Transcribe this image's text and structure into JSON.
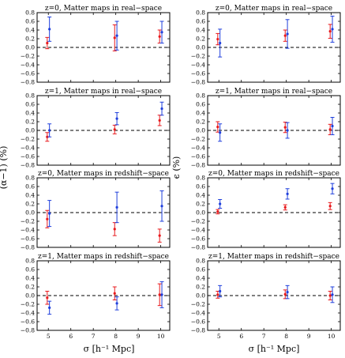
{
  "figure": {
    "xlabel": "σ [h⁻¹ Mpc]",
    "ylabel_left": "(α−1) (%)",
    "ylabel_right": "ϵ (%)"
  },
  "chart_data": [
    {
      "type": "scatter",
      "column": "left",
      "row": 0,
      "title": "z=0, Matter maps in real−space",
      "xlabel": "",
      "ylabel": "(α−1) (%)",
      "xlim": [
        4.5,
        10.4
      ],
      "ylim": [
        -0.8,
        0.8
      ],
      "xticks": [],
      "yticks": [
        -0.8,
        -0.6,
        -0.4,
        -0.2,
        0.0,
        0.2,
        0.4,
        0.6,
        0.8
      ],
      "reference_line": 0,
      "errorbars": true,
      "series": [
        {
          "color": "#e8191c",
          "x": [
            4.95,
            7.95,
            9.95
          ],
          "y": [
            0.1,
            0.22,
            0.25
          ],
          "err": [
            0.13,
            0.3,
            0.15
          ]
        },
        {
          "color": "#1f3fdc",
          "x": [
            5.05,
            8.05,
            10.05
          ],
          "y": [
            0.42,
            0.27,
            0.35
          ],
          "err": [
            0.28,
            0.33,
            0.25
          ]
        }
      ]
    },
    {
      "type": "scatter",
      "column": "right",
      "row": 0,
      "title": "z=0, Matter maps in real−space",
      "xlabel": "",
      "ylabel": "ϵ (%)",
      "xlim": [
        4.5,
        10.4
      ],
      "ylim": [
        -0.8,
        0.8
      ],
      "xticks": [],
      "yticks": [
        -0.8,
        -0.6,
        -0.4,
        -0.2,
        0.0,
        0.2,
        0.4,
        0.6,
        0.8
      ],
      "reference_line": 0,
      "errorbars": true,
      "series": [
        {
          "color": "#e8191c",
          "x": [
            4.95,
            7.95,
            9.95
          ],
          "y": [
            0.19,
            0.27,
            0.37
          ],
          "err": [
            0.13,
            0.13,
            0.16
          ]
        },
        {
          "color": "#1f3fdc",
          "x": [
            5.05,
            8.05,
            10.05
          ],
          "y": [
            0.1,
            0.31,
            0.42
          ],
          "err": [
            0.32,
            0.33,
            0.3
          ]
        }
      ]
    },
    {
      "type": "scatter",
      "column": "left",
      "row": 1,
      "title": "z=1, Matter maps in real−space",
      "xlabel": "",
      "ylabel": "(α−1) (%)",
      "xlim": [
        4.5,
        10.4
      ],
      "ylim": [
        -0.8,
        0.8
      ],
      "xticks": [],
      "yticks": [
        -0.8,
        -0.6,
        -0.4,
        -0.2,
        0.0,
        0.2,
        0.4,
        0.6,
        0.8
      ],
      "reference_line": 0,
      "errorbars": true,
      "series": [
        {
          "color": "#e8191c",
          "x": [
            4.95,
            7.95,
            9.95
          ],
          "y": [
            -0.15,
            0.02,
            0.23
          ],
          "err": [
            0.1,
            0.1,
            0.12
          ]
        },
        {
          "color": "#1f3fdc",
          "x": [
            5.05,
            8.05,
            10.05
          ],
          "y": [
            0.0,
            0.27,
            0.5
          ],
          "err": [
            0.15,
            0.14,
            0.15
          ]
        }
      ]
    },
    {
      "type": "scatter",
      "column": "right",
      "row": 1,
      "title": "z=1, Matter maps in real−space",
      "xlabel": "",
      "ylabel": "ϵ (%)",
      "xlim": [
        4.5,
        10.4
      ],
      "ylim": [
        -0.8,
        0.8
      ],
      "xticks": [],
      "yticks": [
        -0.8,
        -0.6,
        -0.4,
        -0.2,
        0.0,
        0.2,
        0.4,
        0.6,
        0.8
      ],
      "reference_line": 0,
      "errorbars": true,
      "series": [
        {
          "color": "#e8191c",
          "x": [
            4.95,
            7.95,
            9.95
          ],
          "y": [
            0.08,
            0.07,
            0.02
          ],
          "err": [
            0.12,
            0.12,
            0.12
          ]
        },
        {
          "color": "#1f3fdc",
          "x": [
            5.05,
            8.05,
            10.05
          ],
          "y": [
            -0.05,
            0.0,
            0.1
          ],
          "err": [
            0.2,
            0.18,
            0.2
          ]
        }
      ]
    },
    {
      "type": "scatter",
      "column": "left",
      "row": 2,
      "title": "z=0, Matter maps in redshift−space",
      "xlabel": "",
      "ylabel": "(α−1) (%)",
      "xlim": [
        4.5,
        10.4
      ],
      "ylim": [
        -0.8,
        0.8
      ],
      "xticks": [],
      "yticks": [
        -0.8,
        -0.6,
        -0.4,
        -0.2,
        0.0,
        0.2,
        0.4,
        0.6,
        0.8
      ],
      "reference_line": 0,
      "errorbars": true,
      "series": [
        {
          "color": "#e8191c",
          "x": [
            4.95,
            7.95,
            9.95
          ],
          "y": [
            -0.15,
            -0.38,
            -0.53
          ],
          "err": [
            0.2,
            0.15,
            0.15
          ]
        },
        {
          "color": "#1f3fdc",
          "x": [
            5.05,
            8.05,
            10.05
          ],
          "y": [
            -0.02,
            0.12,
            0.15
          ],
          "err": [
            0.3,
            0.35,
            0.35
          ]
        }
      ]
    },
    {
      "type": "scatter",
      "column": "right",
      "row": 2,
      "title": "z=0, Matter maps in redshift−space",
      "xlabel": "",
      "ylabel": "ϵ (%)",
      "xlim": [
        4.5,
        10.4
      ],
      "ylim": [
        -0.8,
        0.8
      ],
      "xticks": [],
      "yticks": [
        -0.8,
        -0.6,
        -0.4,
        -0.2,
        0.0,
        0.2,
        0.4,
        0.6,
        0.8
      ],
      "reference_line": 0,
      "errorbars": true,
      "series": [
        {
          "color": "#e8191c",
          "x": [
            4.95,
            7.95,
            9.95
          ],
          "y": [
            0.02,
            0.12,
            0.15
          ],
          "err": [
            0.05,
            0.06,
            0.08
          ]
        },
        {
          "color": "#1f3fdc",
          "x": [
            5.05,
            8.05,
            10.05
          ],
          "y": [
            0.2,
            0.43,
            0.55
          ],
          "err": [
            0.1,
            0.12,
            0.12
          ]
        }
      ]
    },
    {
      "type": "scatter",
      "column": "left",
      "row": 3,
      "title": "z=1, Matter maps in redshift−space",
      "xlabel": "σ [h⁻¹ Mpc]",
      "ylabel": "(α−1) (%)",
      "xlim": [
        4.5,
        10.4
      ],
      "ylim": [
        -0.8,
        0.8
      ],
      "xticks": [
        5,
        6,
        7,
        8,
        9,
        10
      ],
      "yticks": [
        -0.8,
        -0.6,
        -0.4,
        -0.2,
        0.0,
        0.2,
        0.4,
        0.6,
        0.8
      ],
      "reference_line": 0,
      "errorbars": true,
      "series": [
        {
          "color": "#e8191c",
          "x": [
            4.95,
            7.95,
            9.95
          ],
          "y": [
            -0.05,
            0.05,
            0.02
          ],
          "err": [
            0.15,
            0.15,
            0.25
          ]
        },
        {
          "color": "#1f3fdc",
          "x": [
            5.05,
            8.05,
            10.05
          ],
          "y": [
            -0.28,
            -0.18,
            0.02
          ],
          "err": [
            0.15,
            0.15,
            0.3
          ]
        }
      ]
    },
    {
      "type": "scatter",
      "column": "right",
      "row": 3,
      "title": "z=1, Matter maps in redshift−space",
      "xlabel": "σ [h⁻¹ Mpc]",
      "ylabel": "ϵ (%)",
      "xlim": [
        4.5,
        10.4
      ],
      "ylim": [
        -0.8,
        0.8
      ],
      "xticks": [
        5,
        6,
        7,
        8,
        9,
        10
      ],
      "yticks": [
        -0.8,
        -0.6,
        -0.4,
        -0.2,
        0.0,
        0.2,
        0.4,
        0.6,
        0.8
      ],
      "reference_line": 0,
      "errorbars": true,
      "series": [
        {
          "color": "#e8191c",
          "x": [
            4.95,
            7.95,
            9.95
          ],
          "y": [
            0.02,
            0.03,
            0.0
          ],
          "err": [
            0.08,
            0.1,
            0.1
          ]
        },
        {
          "color": "#1f3fdc",
          "x": [
            5.05,
            8.05,
            10.05
          ],
          "y": [
            0.1,
            0.08,
            0.02
          ],
          "err": [
            0.13,
            0.15,
            0.18
          ]
        }
      ]
    }
  ]
}
